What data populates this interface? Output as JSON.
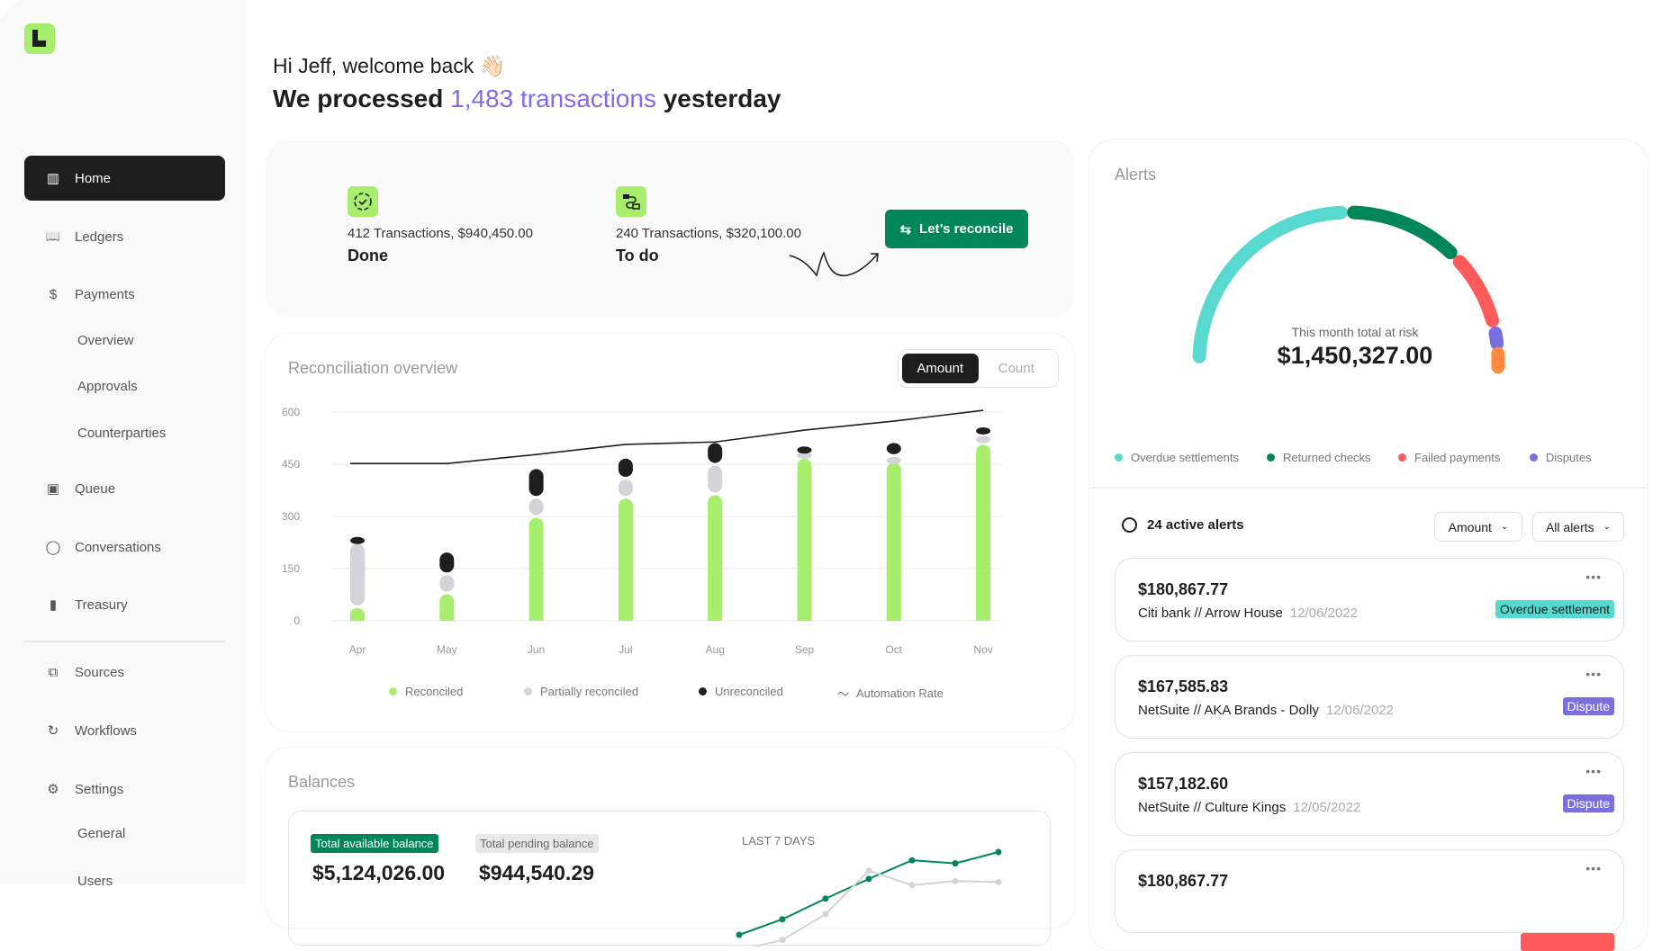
{
  "sidebar": {
    "items": [
      {
        "label": "Home",
        "icon": "layout-icon",
        "active": true
      },
      {
        "label": "Ledgers",
        "icon": "book-icon"
      },
      {
        "label": "Payments",
        "icon": "dollar-icon"
      },
      {
        "label": "Overview",
        "sub": true
      },
      {
        "label": "Approvals",
        "sub": true
      },
      {
        "label": "Counterparties",
        "sub": true
      },
      {
        "label": "Queue",
        "icon": "inbox-icon"
      },
      {
        "label": "Conversations",
        "icon": "chat-icon"
      },
      {
        "label": "Treasury",
        "icon": "bar-chart-icon"
      },
      {
        "label": "Sources",
        "icon": "code-file-icon"
      },
      {
        "label": "Workflows",
        "icon": "workflow-icon"
      },
      {
        "label": "Settings",
        "icon": "gear-icon"
      },
      {
        "label": "General",
        "sub": true
      },
      {
        "label": "Users",
        "sub": true
      }
    ]
  },
  "header": {
    "greeting": "Hi Jeff, welcome back",
    "emoji": "👋🏻",
    "line_pre": "We processed",
    "line_accent": "1,483 transactions",
    "line_post": "yesterday"
  },
  "summary": {
    "done": {
      "text": "412 Transactions, $940,450.00",
      "label": "Done"
    },
    "todo": {
      "text": "240 Transactions, $320,100.00",
      "label": "To do"
    },
    "button": "Let’s reconcile"
  },
  "recon": {
    "title": "Reconciliation overview",
    "toggle": [
      "Amount",
      "Count"
    ],
    "active_toggle": "Amount"
  },
  "chart_data": {
    "type": "bar",
    "stacked": true,
    "categories": [
      "Apr",
      "May",
      "Jun",
      "Jul",
      "Aug",
      "Sep",
      "Oct",
      "Nov"
    ],
    "yticks": [
      0,
      150,
      300,
      450,
      600
    ],
    "ylim": [
      0,
      600
    ],
    "grid": true,
    "legend_placement": "bottom",
    "series": [
      {
        "name": "Reconciled",
        "color": "#a6ee6c",
        "values": [
          40,
          80,
          300,
          355,
          365,
          470,
          458,
          510
        ]
      },
      {
        "name": "Partially reconciled",
        "color": "#d4d4d8",
        "values": [
          185,
          55,
          55,
          55,
          85,
          20,
          17,
          25
        ]
      },
      {
        "name": "Unreconciled",
        "color": "#1e1e1e",
        "values": [
          20,
          65,
          85,
          60,
          65,
          15,
          40,
          25
        ]
      }
    ],
    "line": {
      "name": "Automation Rate",
      "color": "#1e1e1e",
      "values": [
        452,
        452,
        478,
        507,
        514,
        548,
        574,
        605
      ]
    }
  },
  "balances": {
    "title": "Balances",
    "available_label": "Total available balance",
    "available": "$5,124,026.00",
    "pending_label": "Total pending balance",
    "pending": "$944,540.29",
    "spark_label": "LAST 7 DAYS",
    "spark": {
      "available": [
        20,
        35,
        55,
        74,
        92,
        89,
        100
      ],
      "pending": [
        5,
        15,
        40,
        82,
        68,
        72,
        71
      ],
      "colors": [
        "#008659",
        "#d4d4d8"
      ]
    }
  },
  "alerts": {
    "title": "Alerts",
    "gauge_label": "This month total at risk",
    "gauge_total": "$1,450,327.00",
    "legend": [
      {
        "label": "Overdue settlements",
        "color": "#57d9cf"
      },
      {
        "label": "Returned checks",
        "color": "#008659"
      },
      {
        "label": "Failed payments",
        "color": "#ff5a5a"
      },
      {
        "label": "Disputes",
        "color": "#7b6fe0"
      }
    ],
    "extra_segment_color": "#ff8a3d",
    "count_label": "24 active alerts",
    "sort": "Amount",
    "filter": "All alerts",
    "items": [
      {
        "amount": "$180,867.77",
        "source": "Citi bank // Arrow House",
        "date": "12/06/2022",
        "tag": "Overdue settlement",
        "tag_color": "#57d9cf"
      },
      {
        "amount": "$167,585.83",
        "source": "NetSuite // AKA Brands - Dolly",
        "date": "12/06/2022",
        "tag": "Dispute",
        "tag_color": "#7b6fe0"
      },
      {
        "amount": "$157,182.60",
        "source": "NetSuite // Culture Kings",
        "date": "12/05/2022",
        "tag": "Dispute",
        "tag_color": "#7b6fe0"
      },
      {
        "amount": "$180,867.77",
        "source": "",
        "date": "",
        "tag": "",
        "tag_color": "#ff5a5a"
      }
    ]
  }
}
